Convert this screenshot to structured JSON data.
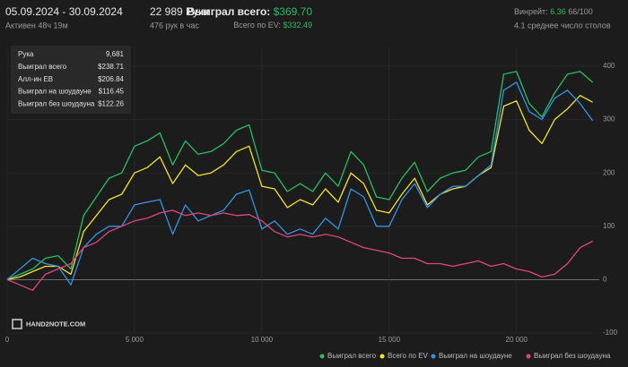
{
  "header": {
    "period": "05.09.2024 - 30.09.2024",
    "active": "Активен 48ч 19м",
    "hands": "22 989 Руки",
    "hands_per_hour": "476 рук в час",
    "won_label": "Выиграл всего:",
    "won_value": "$369.70",
    "ev_label": "Всего по EV:",
    "ev_value": "$332.49",
    "winrate_label": "Винрейт:",
    "winrate_value": "6.36",
    "winrate_unit": "66/100",
    "tables": "4.1 среднее число столов"
  },
  "tooltip": {
    "hand_label": "Рука",
    "hand_value": "9,681",
    "rows": [
      {
        "label": "Выиграл всего",
        "value": "$238.71",
        "color": "#2bbd5f"
      },
      {
        "label": "Алл-ин EB",
        "value": "$206.84",
        "color": "#f2e52e"
      },
      {
        "label": "Выиграл на шоудауне",
        "value": "$116.45",
        "color": "#3593e6"
      },
      {
        "label": "Выиграл без шоудауна",
        "value": "$122.26",
        "color": "#e0467e"
      }
    ]
  },
  "watermark": "HAND2NOTE.COM",
  "chart_data": {
    "type": "line",
    "x": [
      0,
      500,
      1000,
      1500,
      2000,
      2500,
      3000,
      3500,
      4000,
      4500,
      5000,
      5500,
      6000,
      6500,
      7000,
      7500,
      8000,
      8500,
      9000,
      9500,
      10000,
      10500,
      11000,
      11500,
      12000,
      12500,
      13000,
      13500,
      14000,
      14500,
      15000,
      15500,
      16000,
      16500,
      17000,
      17500,
      18000,
      18500,
      19000,
      19500,
      20000,
      20500,
      21000,
      21500,
      22000,
      22500,
      22989
    ],
    "series": [
      {
        "name": "Выиграл всего",
        "color": "#2bbd5f",
        "values": [
          0,
          10,
          20,
          40,
          45,
          20,
          120,
          155,
          190,
          200,
          250,
          260,
          275,
          215,
          260,
          235,
          240,
          255,
          280,
          290,
          205,
          200,
          165,
          180,
          165,
          200,
          175,
          240,
          215,
          155,
          150,
          190,
          220,
          165,
          190,
          200,
          205,
          230,
          240,
          385,
          390,
          330,
          305,
          350,
          385,
          390,
          369.7
        ]
      },
      {
        "name": "Всего по EV",
        "color": "#f2e52e",
        "values": [
          0,
          5,
          15,
          25,
          25,
          10,
          90,
          120,
          150,
          160,
          200,
          210,
          230,
          180,
          215,
          195,
          200,
          215,
          240,
          250,
          175,
          170,
          135,
          150,
          140,
          170,
          145,
          200,
          180,
          130,
          125,
          160,
          190,
          140,
          160,
          170,
          175,
          195,
          210,
          325,
          335,
          280,
          255,
          300,
          320,
          345,
          332.49
        ]
      },
      {
        "name": "Выиграл на шоудауне",
        "color": "#3593e6",
        "values": [
          0,
          20,
          40,
          30,
          25,
          -10,
          60,
          85,
          100,
          100,
          140,
          145,
          150,
          85,
          140,
          110,
          120,
          130,
          160,
          168,
          95,
          110,
          85,
          95,
          85,
          115,
          95,
          170,
          155,
          100,
          100,
          150,
          180,
          135,
          160,
          175,
          175,
          195,
          215,
          355,
          370,
          315,
          300,
          340,
          355,
          330,
          297.7
        ]
      },
      {
        "name": "Выиграл без шоудауна",
        "color": "#e0467e",
        "values": [
          0,
          -10,
          -20,
          10,
          20,
          30,
          60,
          70,
          90,
          100,
          110,
          115,
          125,
          130,
          120,
          125,
          120,
          125,
          120,
          122,
          110,
          90,
          80,
          85,
          80,
          85,
          80,
          70,
          60,
          55,
          50,
          40,
          40,
          30,
          30,
          25,
          30,
          35,
          25,
          30,
          20,
          15,
          5,
          10,
          30,
          60,
          72
        ]
      }
    ],
    "xlim": [
      0,
      23250
    ],
    "xticks": [
      0,
      {
        "value": 5000,
        "label": "5 000"
      },
      {
        "value": 10000,
        "label": "10 000"
      },
      {
        "value": 15000,
        "label": "15 000"
      },
      {
        "value": 20000,
        "label": "20 000"
      }
    ],
    "ylim": [
      -100,
      420
    ],
    "yticks": [
      -100,
      0,
      100,
      200,
      300,
      400
    ],
    "grid": true
  }
}
